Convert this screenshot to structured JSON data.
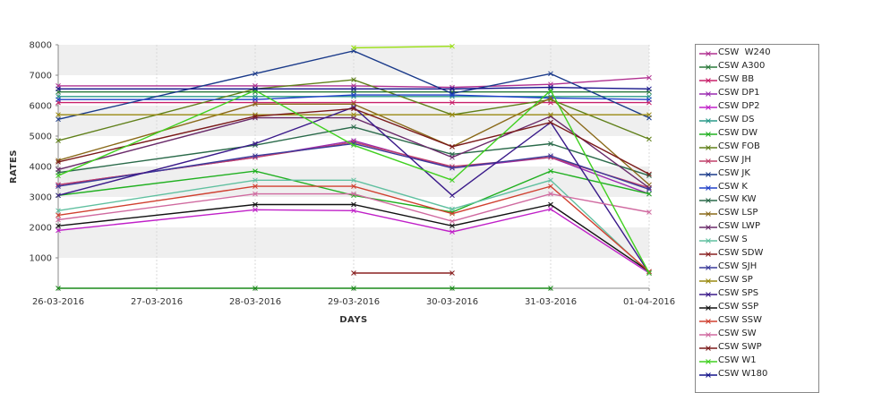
{
  "chart_data": {
    "type": "line",
    "x": [
      "26-03-2016",
      "27-03-2016",
      "28-03-2016",
      "29-03-2016",
      "30-03-2016",
      "31-03-2016",
      "01-04-2016"
    ],
    "xlabel": "DAYS",
    "ylabel": "RATES",
    "ylim": [
      0,
      8000
    ],
    "yticks": [
      1000,
      2000,
      3000,
      4000,
      5000,
      6000,
      7000,
      8000
    ],
    "grid": "alternating horizontal bands",
    "legend_position": "right",
    "series": [
      {
        "name": "CSW  W240",
        "color": "#b03090",
        "values": [
          6650,
          null,
          6650,
          6650,
          6600,
          6700,
          6920
        ]
      },
      {
        "name": "CSW A300",
        "color": "#2a7a3a",
        "values": [
          6450,
          null,
          6450,
          6450,
          6450,
          6450,
          6450
        ]
      },
      {
        "name": "CSW BB",
        "color": "#c8206a",
        "values": [
          6100,
          null,
          6100,
          6100,
          6100,
          6100,
          6100
        ]
      },
      {
        "name": "CSW DP1",
        "color": "#9a2ab0",
        "values": [
          3400,
          null,
          4300,
          4850,
          3950,
          4300,
          3100
        ]
      },
      {
        "name": "CSW DP2",
        "color": "#c020c8",
        "values": [
          1900,
          null,
          2580,
          2550,
          1850,
          2600,
          500
        ]
      },
      {
        "name": "CSW DS",
        "color": "#2a9a8a",
        "values": [
          6300,
          null,
          6300,
          6300,
          6300,
          6300,
          6300
        ]
      },
      {
        "name": "CSW DW",
        "color": "#20b020",
        "values": [
          3050,
          null,
          3850,
          3050,
          2500,
          3850,
          3100
        ]
      },
      {
        "name": "CSW FOB",
        "color": "#60801a",
        "values": [
          4850,
          null,
          6550,
          6850,
          5700,
          6200,
          4900
        ]
      },
      {
        "name": "CSW JH",
        "color": "#c0406a",
        "values": [
          3400,
          null,
          4300,
          4800,
          4000,
          4300,
          3300
        ]
      },
      {
        "name": "CSW JK",
        "color": "#1a3a8a",
        "values": [
          5550,
          null,
          7050,
          7800,
          6400,
          7050,
          5600
        ]
      },
      {
        "name": "CSW K",
        "color": "#2040c8",
        "values": [
          6200,
          null,
          6200,
          6350,
          6350,
          6250,
          6200
        ]
      },
      {
        "name": "CSW KW",
        "color": "#2a6a4a",
        "values": [
          3800,
          null,
          4700,
          5300,
          4400,
          4750,
          3700
        ]
      },
      {
        "name": "CSW LSP",
        "color": "#8a6a1a",
        "values": [
          4200,
          null,
          6050,
          6050,
          4650,
          6250,
          3400
        ]
      },
      {
        "name": "CSW LWP",
        "color": "#6a2a6a",
        "values": [
          3900,
          null,
          5600,
          5600,
          4300,
          5650,
          3300
        ]
      },
      {
        "name": "CSW S",
        "color": "#60c0a0",
        "values": [
          2550,
          null,
          3550,
          3550,
          2600,
          3550,
          500
        ]
      },
      {
        "name": "CSW SDW",
        "color": "#8a2020",
        "values": [
          null,
          null,
          null,
          500,
          500,
          null,
          null
        ]
      },
      {
        "name": "CSW SJH",
        "color": "#3a3a9a",
        "values": [
          3350,
          null,
          4350,
          4750,
          3950,
          4350,
          3250
        ]
      },
      {
        "name": "CSW SP",
        "color": "#9a8a10",
        "values": [
          5700,
          null,
          5700,
          5700,
          5700,
          5700,
          5700
        ]
      },
      {
        "name": "CSW SPS",
        "color": "#3a1a8a",
        "values": [
          3050,
          null,
          4750,
          5950,
          3050,
          5450,
          500
        ]
      },
      {
        "name": "CSW SSP",
        "color": "#111111",
        "values": [
          2050,
          null,
          2750,
          2750,
          2050,
          2750,
          550
        ]
      },
      {
        "name": "CSW SSW",
        "color": "#d04030",
        "values": [
          2400,
          null,
          3350,
          3350,
          2450,
          3350,
          550
        ]
      },
      {
        "name": "CSW SW",
        "color": "#d06aa0",
        "values": [
          2250,
          null,
          3100,
          3100,
          2200,
          3100,
          2500
        ]
      },
      {
        "name": "CSW SWP",
        "color": "#7a1a1a",
        "values": [
          4150,
          null,
          5650,
          5900,
          4650,
          5450,
          3750
        ]
      },
      {
        "name": "CSW W1",
        "color": "#40d020",
        "values": [
          3700,
          null,
          6500,
          4700,
          3550,
          6500,
          500
        ]
      },
      {
        "name": "CSW W180",
        "color": "#14148a",
        "values": [
          6550,
          null,
          6550,
          6550,
          6550,
          6600,
          6550
        ]
      },
      {
        "name": "",
        "color": "#99e010",
        "values": [
          null,
          null,
          null,
          7900,
          7950,
          null,
          null
        ]
      },
      {
        "name": "",
        "color": "#1a8a1a",
        "values": [
          0,
          null,
          0,
          0,
          0,
          0,
          null
        ]
      }
    ]
  }
}
